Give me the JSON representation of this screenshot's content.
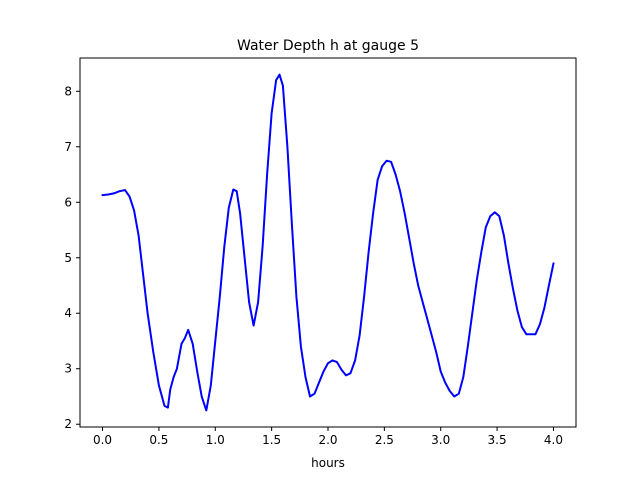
{
  "chart_data": {
    "type": "line",
    "title": "Water Depth h at gauge 5",
    "xlabel": "hours",
    "ylabel": "",
    "xlim": [
      -0.2,
      4.2
    ],
    "ylim": [
      1.95,
      8.6
    ],
    "xticks": [
      0.0,
      0.5,
      1.0,
      1.5,
      2.0,
      2.5,
      3.0,
      3.5,
      4.0
    ],
    "xtick_labels": [
      "0.0",
      "0.5",
      "1.0",
      "1.5",
      "2.0",
      "2.5",
      "3.0",
      "3.5",
      "4.0"
    ],
    "yticks": [
      2,
      3,
      4,
      5,
      6,
      7,
      8
    ],
    "ytick_labels": [
      "2",
      "3",
      "4",
      "5",
      "6",
      "7",
      "8"
    ],
    "grid": false,
    "legend": "none",
    "series": [
      {
        "color": "#0000ff",
        "x": [
          0.0,
          0.05,
          0.1,
          0.15,
          0.2,
          0.24,
          0.28,
          0.32,
          0.36,
          0.4,
          0.45,
          0.5,
          0.55,
          0.58,
          0.6,
          0.63,
          0.66,
          0.7,
          0.73,
          0.76,
          0.8,
          0.84,
          0.88,
          0.92,
          0.96,
          1.0,
          1.04,
          1.08,
          1.12,
          1.16,
          1.19,
          1.22,
          1.26,
          1.3,
          1.34,
          1.38,
          1.42,
          1.46,
          1.5,
          1.54,
          1.57,
          1.6,
          1.64,
          1.68,
          1.72,
          1.76,
          1.8,
          1.84,
          1.88,
          1.92,
          1.96,
          2.0,
          2.04,
          2.08,
          2.12,
          2.16,
          2.2,
          2.24,
          2.28,
          2.32,
          2.36,
          2.4,
          2.44,
          2.48,
          2.52,
          2.56,
          2.6,
          2.64,
          2.68,
          2.72,
          2.76,
          2.8,
          2.84,
          2.88,
          2.92,
          2.96,
          3.0,
          3.04,
          3.08,
          3.12,
          3.16,
          3.2,
          3.24,
          3.28,
          3.32,
          3.36,
          3.4,
          3.44,
          3.48,
          3.52,
          3.56,
          3.6,
          3.64,
          3.68,
          3.72,
          3.76,
          3.8,
          3.84,
          3.88,
          3.92,
          3.96,
          4.0
        ],
        "y": [
          6.13,
          6.14,
          6.16,
          6.2,
          6.22,
          6.1,
          5.85,
          5.4,
          4.7,
          4.0,
          3.3,
          2.7,
          2.33,
          2.3,
          2.62,
          2.85,
          3.0,
          3.45,
          3.55,
          3.7,
          3.45,
          2.95,
          2.5,
          2.25,
          2.7,
          3.5,
          4.3,
          5.2,
          5.9,
          6.23,
          6.2,
          5.8,
          5.0,
          4.2,
          3.78,
          4.2,
          5.2,
          6.5,
          7.6,
          8.2,
          8.3,
          8.1,
          7.0,
          5.6,
          4.3,
          3.4,
          2.85,
          2.5,
          2.55,
          2.75,
          2.95,
          3.1,
          3.15,
          3.12,
          2.98,
          2.88,
          2.92,
          3.15,
          3.6,
          4.3,
          5.1,
          5.8,
          6.4,
          6.65,
          6.75,
          6.73,
          6.5,
          6.2,
          5.8,
          5.35,
          4.9,
          4.5,
          4.2,
          3.9,
          3.6,
          3.3,
          2.95,
          2.75,
          2.6,
          2.5,
          2.55,
          2.85,
          3.4,
          4.0,
          4.6,
          5.1,
          5.55,
          5.75,
          5.82,
          5.75,
          5.4,
          4.9,
          4.45,
          4.05,
          3.75,
          3.62,
          3.62,
          3.62,
          3.8,
          4.1,
          4.5,
          4.9
        ]
      }
    ]
  }
}
